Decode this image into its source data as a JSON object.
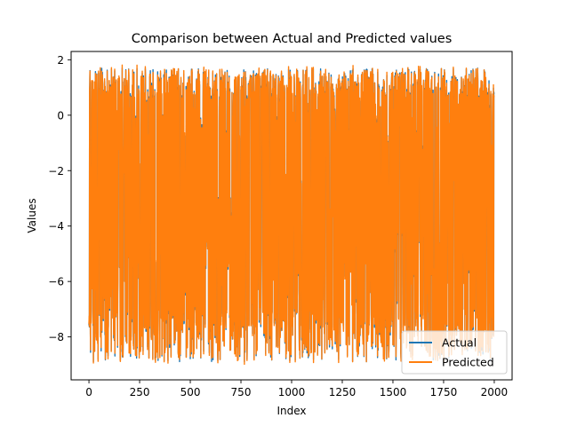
{
  "chart_data": {
    "type": "line",
    "title": "Comparison between Actual and Predicted values",
    "xlabel": "Index",
    "ylabel": "Values",
    "xlim": [
      -88,
      2088
    ],
    "ylim": [
      -9.55,
      2.3
    ],
    "xticks": [
      0,
      250,
      500,
      750,
      1000,
      1250,
      1500,
      1750,
      2000
    ],
    "yticks": [
      -8,
      -6,
      -4,
      -2,
      0,
      2
    ],
    "n_points": 2000,
    "grid": false,
    "legend_position": "lower right",
    "series": [
      {
        "name": "Actual",
        "color": "#1f77b4",
        "approx_range": [
          -9.05,
          1.78
        ],
        "approx_mean": -3.8
      },
      {
        "name": "Predicted",
        "color": "#ff7f0e",
        "approx_range": [
          -8.9,
          1.8
        ],
        "approx_mean": -3.8
      }
    ]
  }
}
